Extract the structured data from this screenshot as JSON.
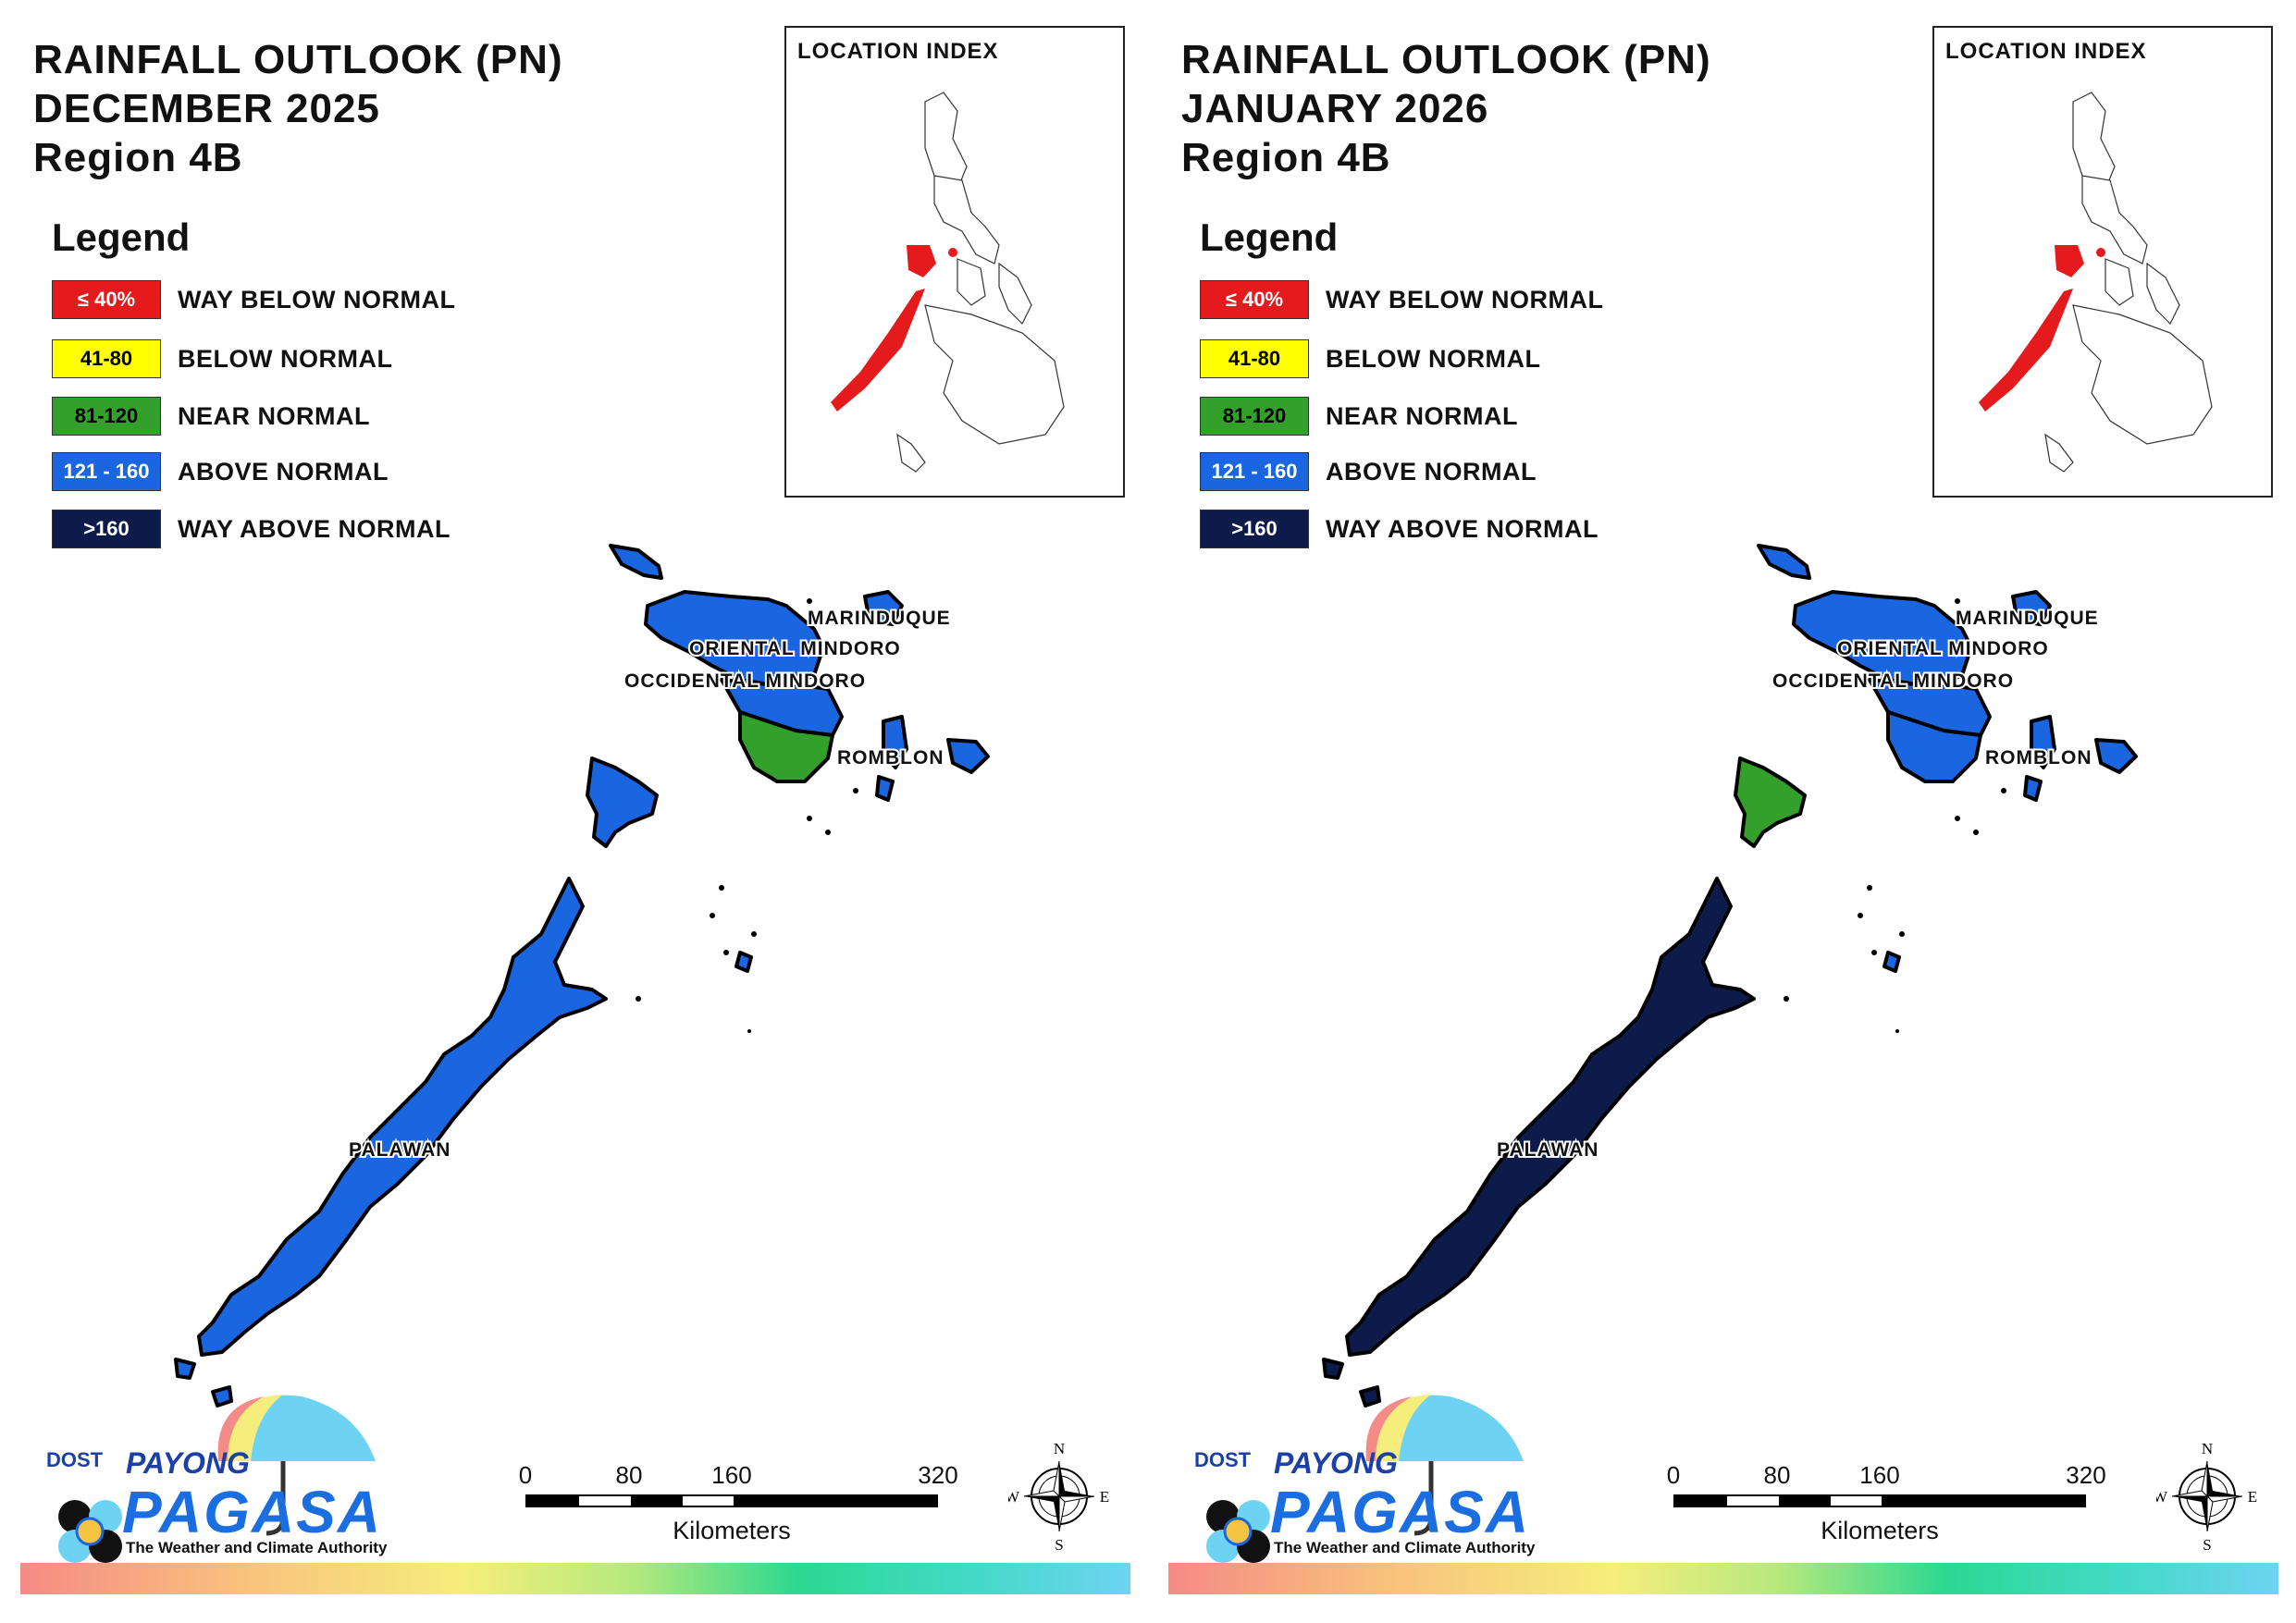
{
  "panels": [
    {
      "title_line1": "RAINFALL OUTLOOK (PN)",
      "title_line2": "DECEMBER 2025",
      "title_line3": "Region 4B",
      "fills": {
        "lubang": "#1a66e0",
        "mindoro_north": "#1a66e0",
        "mindoro_south": "#1a66e0",
        "mindoro_se": "#33a02c",
        "marinduque": "#1a66e0",
        "romblon": "#1a66e0",
        "palawan": "#1a66e0",
        "calamian": "#1a66e0",
        "cuyo": "#1a66e0"
      }
    },
    {
      "title_line1": "RAINFALL OUTLOOK (PN)",
      "title_line2": "JANUARY 2026",
      "title_line3": "Region 4B",
      "fills": {
        "lubang": "#1a66e0",
        "mindoro_north": "#1a66e0",
        "mindoro_south": "#1a66e0",
        "mindoro_se": "#1a66e0",
        "marinduque": "#1a66e0",
        "romblon": "#1a66e0",
        "palawan": "#0d1b4a",
        "calamian": "#33a02c",
        "cuyo": "#1a66e0"
      }
    }
  ],
  "legend": {
    "title": "Legend",
    "items": [
      {
        "code": "≤ 40%",
        "label": "WAY BELOW NORMAL",
        "color": "#e41a1c",
        "text_color": "#ffffff"
      },
      {
        "code": "41-80",
        "label": "BELOW NORMAL",
        "color": "#ffff00",
        "text_color": "#000000"
      },
      {
        "code": "81-120",
        "label": "NEAR NORMAL",
        "color": "#33a02c",
        "text_color": "#000000"
      },
      {
        "code": "121 - 160",
        "label": "ABOVE NORMAL",
        "color": "#1a66e0",
        "text_color": "#ffffff"
      },
      {
        "code": ">160",
        "label": "WAY ABOVE NORMAL",
        "color": "#0d1b4a",
        "text_color": "#ffffff"
      }
    ]
  },
  "location_index": {
    "label": "LOCATION INDEX",
    "highlight_color": "#e41a1c"
  },
  "province_labels": {
    "marinduque": "MARINDUQUE",
    "oriental_mindoro": "ORIENTAL MINDORO",
    "occidental_mindoro": "OCCIDENTAL MINDORO",
    "romblon": "ROMBLON",
    "palawan": "PALAWAN"
  },
  "scale_bar": {
    "ticks": [
      "0",
      "80",
      "160",
      "320"
    ],
    "unit": "Kilometers"
  },
  "compass": {
    "n": "N",
    "e": "E",
    "s": "S",
    "w": "W"
  },
  "logo": {
    "dost": "DOST",
    "payong": "PAYONG",
    "pagasa": "PAGASA",
    "tagline": "The Weather and Climate Authority"
  }
}
